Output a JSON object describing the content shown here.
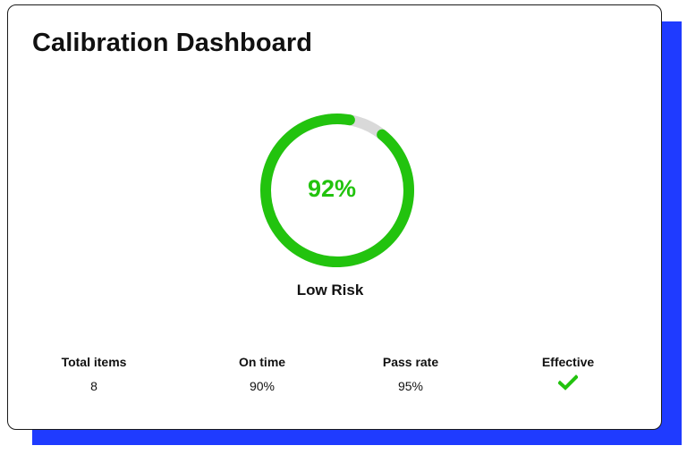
{
  "dashboard": {
    "title": "Calibration Dashboard",
    "gauge": {
      "percent": 92,
      "label": "92%",
      "risk_label": "Low Risk"
    },
    "stats": [
      {
        "label": "Total items",
        "value": "8"
      },
      {
        "label": "On time",
        "value": "90%"
      },
      {
        "label": "Pass rate",
        "value": "95%"
      },
      {
        "label": "Effective",
        "icon": "checkmark-icon"
      }
    ]
  },
  "colors": {
    "accent_green": "#22c30e",
    "track_gray": "#d9d9d9",
    "shadow_blue": "#1f3bff",
    "text": "#111111"
  }
}
